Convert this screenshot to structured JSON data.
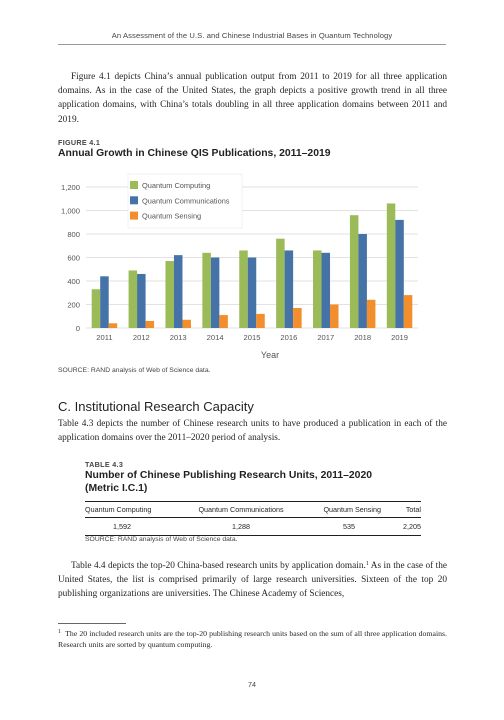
{
  "running_header": "An Assessment of the U.S. and Chinese Industrial Bases in Quantum Technology",
  "paragraph1": "Figure 4.1 depicts China’s annual publication output from 2011 to 2019 for all three application domains. As in the case of the United States, the graph depicts a positive growth trend in all three application domains, with China’s totals doubling in all three application domains between 2011 and 2019.",
  "figure": {
    "label": "FIGURE 4.1",
    "title": "Annual Growth in Chinese QIS Publications, 2011–2019",
    "source": "SOURCE: RAND analysis of Web of Science data."
  },
  "chart_data": {
    "type": "bar",
    "title": "Annual Growth in Chinese QIS Publications, 2011–2019",
    "xlabel": "Year",
    "ylabel": "",
    "categories": [
      "2011",
      "2012",
      "2013",
      "2014",
      "2015",
      "2016",
      "2017",
      "2018",
      "2019"
    ],
    "ylim": [
      0,
      1200
    ],
    "yticks": [
      "0",
      "200",
      "400",
      "600",
      "800",
      "1,000",
      "1,200"
    ],
    "grid": true,
    "legend_position": "top-left",
    "series": [
      {
        "name": "Quantum Computing",
        "color": "#9bbb59",
        "values": [
          330,
          490,
          570,
          640,
          660,
          760,
          660,
          960,
          1060
        ]
      },
      {
        "name": "Quantum Communications",
        "color": "#4572a7",
        "values": [
          440,
          460,
          620,
          600,
          600,
          660,
          640,
          800,
          920
        ]
      },
      {
        "name": "Quantum Sensing",
        "color": "#f28e2b",
        "values": [
          40,
          60,
          70,
          110,
          120,
          170,
          200,
          240,
          280
        ]
      }
    ]
  },
  "section_heading": "C. Institutional Research Capacity",
  "paragraph2": "Table 4.3 depicts the number of Chinese research units to have produced a publication in each of the application domains over the 2011–2020 period of analysis.",
  "table": {
    "label": "TABLE 4.3",
    "title_line1": "Number of Chinese Publishing Research Units, 2011–2020",
    "title_line2": "(Metric I.C.1)",
    "headers": [
      "Quantum Computing",
      "Quantum Communications",
      "Quantum Sensing",
      "Total"
    ],
    "row": [
      "1,592",
      "1,288",
      "535",
      "2,205"
    ],
    "source": "SOURCE: RAND analysis of Web of Science data."
  },
  "paragraph3_before_sup": "Table 4.4 depicts the top-20 China-based research units by application domain.",
  "paragraph3_sup": "1",
  "paragraph3_after_sup": " As in the case of the United States, the list is comprised primarily of large research universities. Sixteen of the top 20 publishing organizations are universities. The Chinese Academy of Sciences,",
  "footnote": {
    "number": "1",
    "text": "The 20 included research units are the top-20 publishing research units based on the sum of all three application domains. Research units are sorted by quantum computing."
  },
  "page_number": "74"
}
